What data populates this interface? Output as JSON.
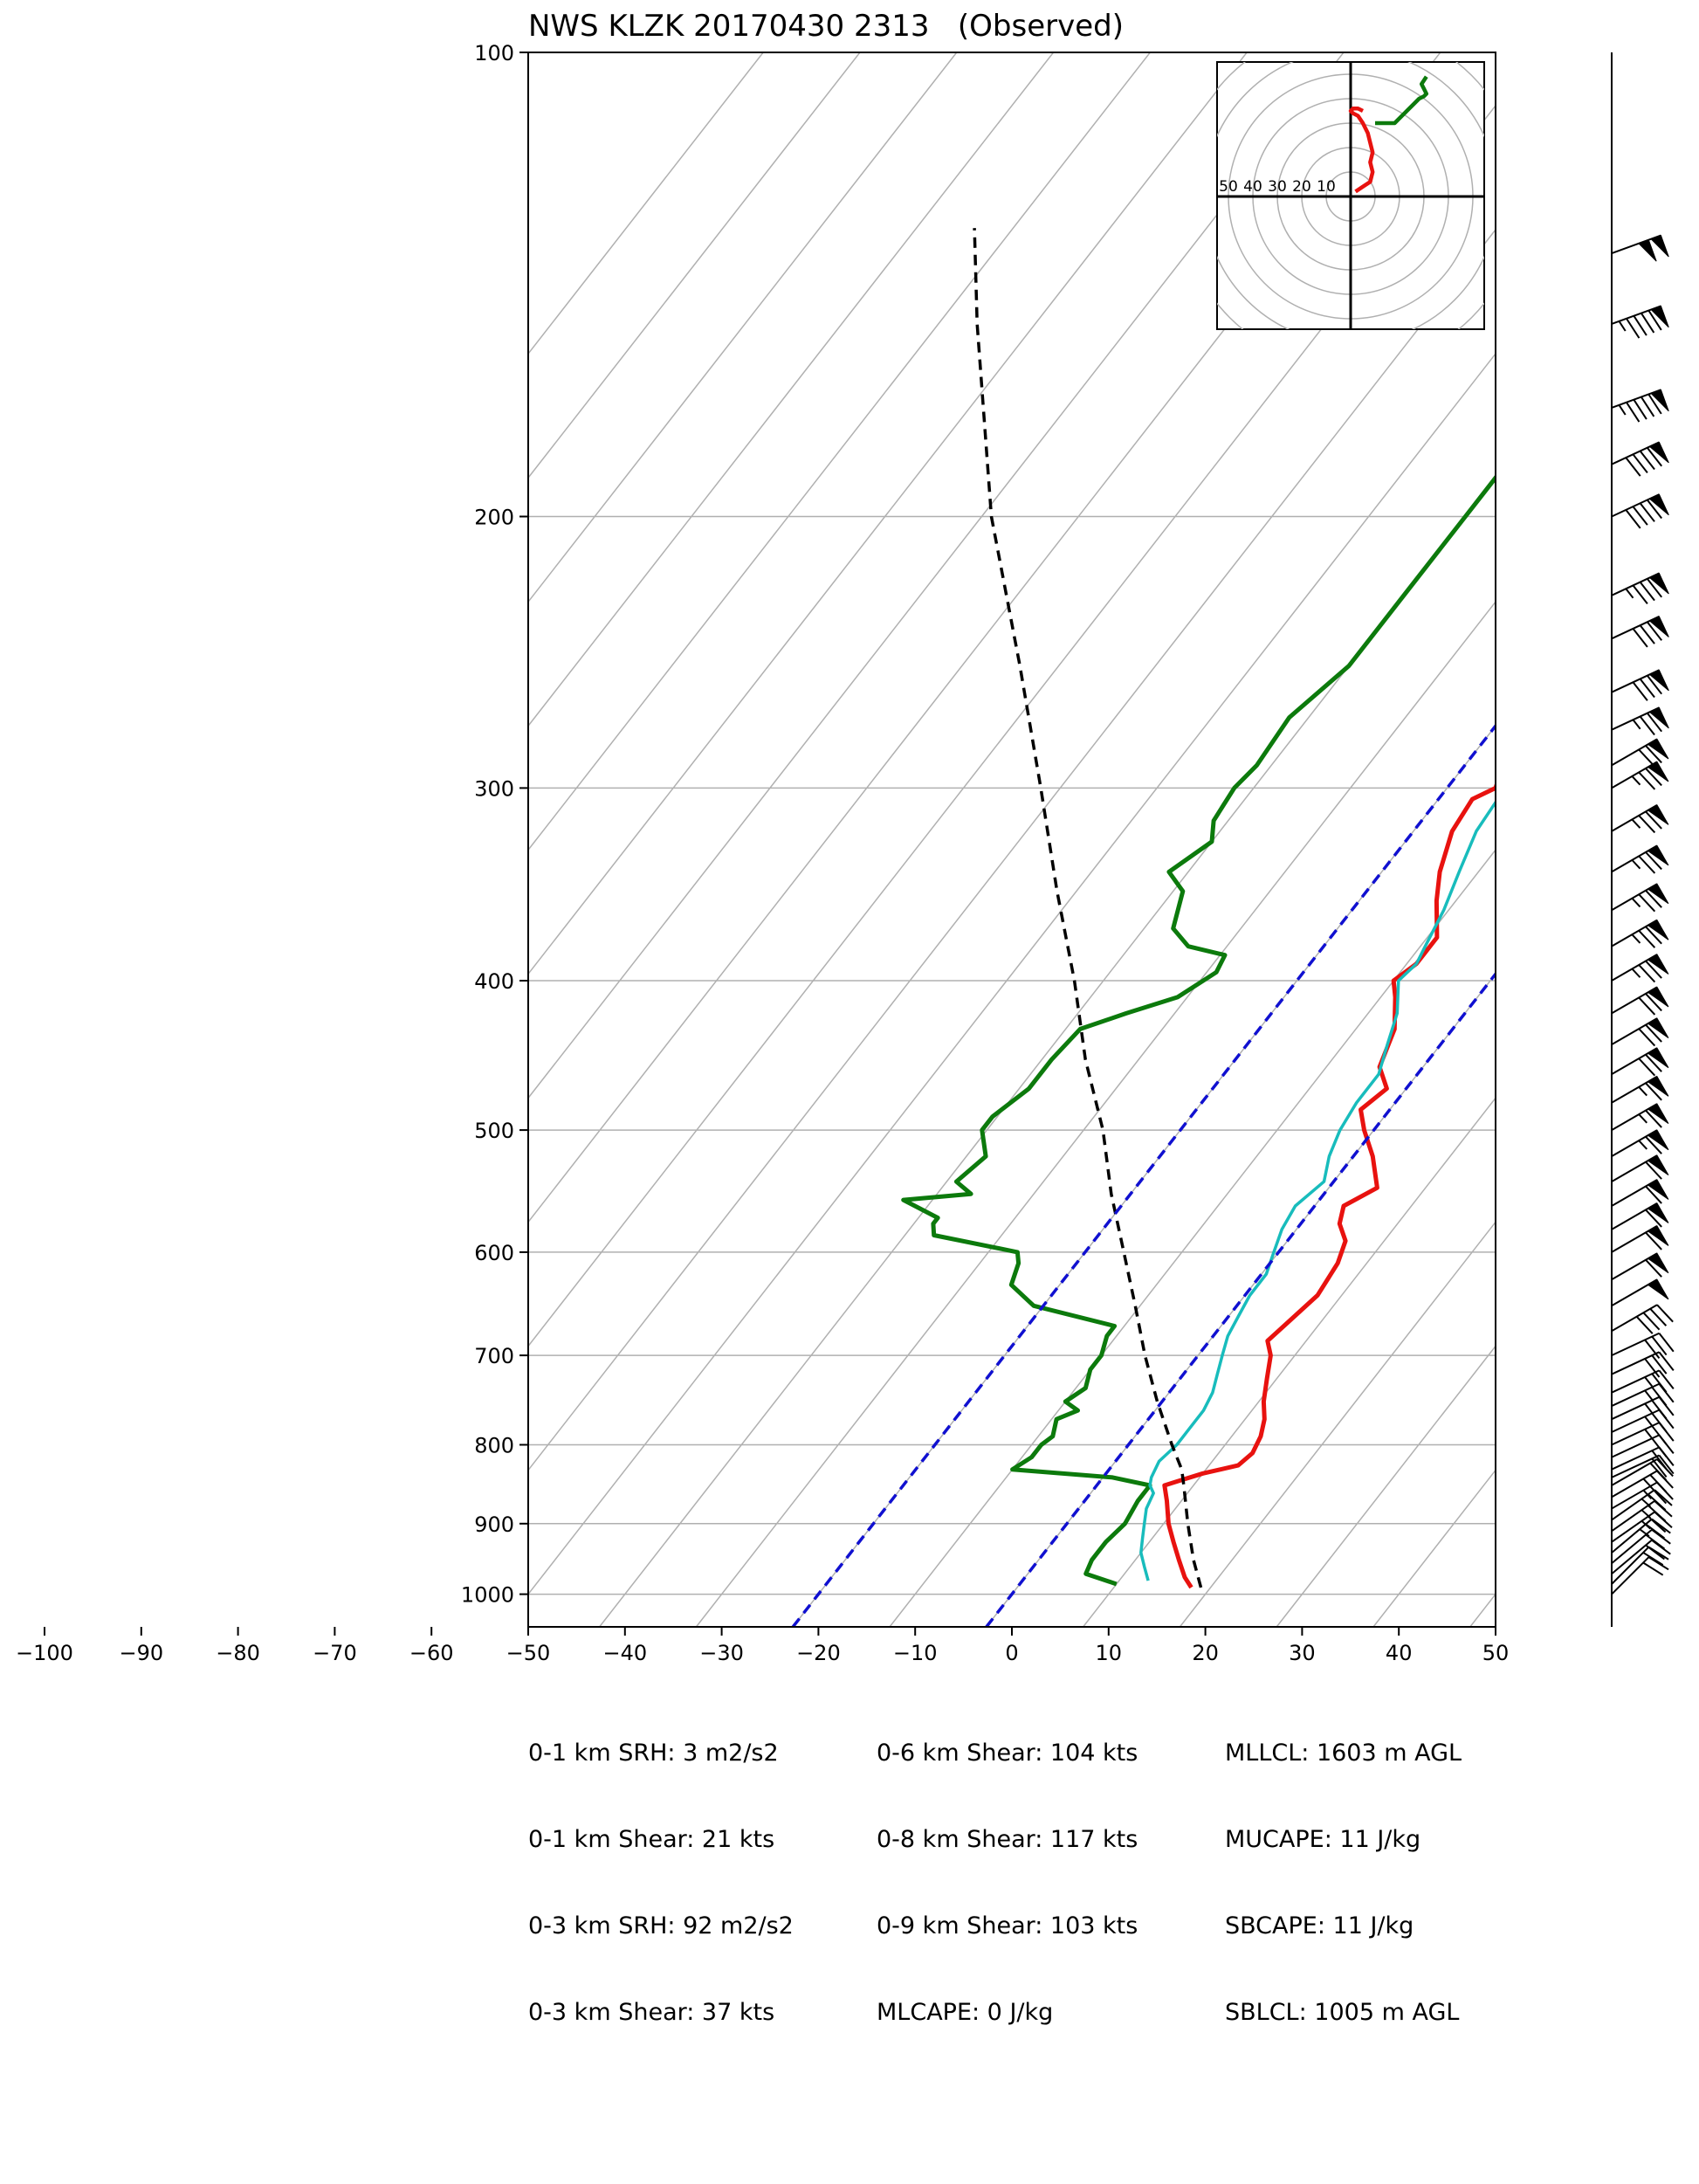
{
  "chart_data": {
    "type": "line",
    "title": "NWS KLZK 20170430 2313   (Observed)",
    "xlabel": "",
    "ylabel": "",
    "x_ticks": [
      "−100",
      "−90",
      "−80",
      "−70",
      "−60",
      "−50",
      "−40",
      "−30",
      "−20",
      "−10",
      "0",
      "10",
      "20",
      "30",
      "40",
      "50"
    ],
    "y_ticks": [
      "100",
      "200",
      "300",
      "400",
      "500",
      "600",
      "700",
      "800",
      "900",
      "1000"
    ],
    "xlim": [
      -50,
      50
    ],
    "ylim": [
      1050,
      100
    ],
    "y_scale": "log",
    "skew": "skew-T log-p",
    "colors": {
      "temperature": "#e8120f",
      "dewpoint": "#0c7a0c",
      "wetbulb": "#18bcbc",
      "parcel": "#000000",
      "dry_adiabat": "#1010d0",
      "grid": "#b0b0b0"
    },
    "series": [
      {
        "key": "temperature",
        "p": [
          990,
          975,
          950,
          925,
          900,
          870,
          850,
          845,
          835,
          825,
          810,
          790,
          770,
          750,
          725,
          700,
          685,
          670,
          640,
          610,
          590,
          575,
          560,
          545,
          520,
          500,
          485,
          470,
          455,
          430,
          410,
          400,
          390,
          375,
          355,
          340,
          320,
          305,
          300,
          290,
          270,
          255,
          240,
          220,
          200,
          190,
          175,
          160,
          150,
          140,
          125,
          115,
          108,
          100
        ],
        "T": [
          18,
          16.5,
          14.5,
          12.5,
          10.5,
          8.5,
          7,
          8,
          10,
          13,
          13.5,
          13,
          12,
          10.5,
          9,
          7.5,
          6,
          6.5,
          7.5,
          7,
          6,
          4,
          3,
          5,
          2,
          -1,
          -3,
          -2,
          -4.5,
          -6,
          -8.5,
          -10,
          -9,
          -9,
          -12,
          -14,
          -16,
          -16.5,
          -15,
          -16,
          -17,
          -17.5,
          -18,
          -19,
          -20,
          -20.5,
          -21,
          -23,
          -24,
          -25,
          -24,
          -22,
          -24,
          -25
        ]
      },
      {
        "key": "dewpoint",
        "p": [
          985,
          970,
          950,
          925,
          900,
          870,
          850,
          840,
          830,
          815,
          800,
          790,
          770,
          760,
          750,
          735,
          715,
          700,
          680,
          670,
          650,
          630,
          610,
          600,
          585,
          575,
          570,
          555,
          550,
          540,
          520,
          500,
          490,
          470,
          450,
          430,
          420,
          410,
          395,
          385,
          380,
          370,
          350,
          340,
          325,
          315,
          300,
          290,
          270,
          250,
          225,
          200,
          180,
          160,
          145,
          130,
          125,
          115,
          110,
          100
        ],
        "T": [
          10,
          6,
          5.5,
          5.5,
          6,
          5.5,
          5.5,
          1,
          -10,
          -9,
          -9,
          -8.5,
          -9.5,
          -8,
          -10,
          -9,
          -10,
          -10,
          -11,
          -11,
          -21,
          -25,
          -26,
          -27,
          -37,
          -38,
          -38,
          -43,
          -36.5,
          -39,
          -38,
          -40.5,
          -40.5,
          -39,
          -39,
          -38.5,
          -35,
          -31,
          -29,
          -29.5,
          -34,
          -37,
          -39,
          -42,
          -40,
          -41.5,
          -42,
          -41.5,
          -42,
          -40,
          -40,
          -40,
          -40,
          -40.5,
          -40.5,
          -40.5,
          -38.5,
          -35,
          -33.5,
          -35
        ]
      },
      {
        "key": "wetbulb",
        "p": [
          980,
          960,
          940,
          920,
          900,
          880,
          860,
          850,
          840,
          820,
          800,
          780,
          760,
          740,
          720,
          700,
          680,
          660,
          640,
          620,
          600,
          580,
          560,
          540,
          520,
          500,
          480,
          460,
          440,
          420,
          400,
          390,
          380,
          360,
          340,
          320,
          300,
          290,
          280,
          270,
          260,
          250,
          240,
          220,
          200,
          185,
          170,
          160,
          150,
          140,
          130,
          125,
          120,
          115,
          110,
          105,
          100
        ],
        "T": [
          13,
          11.5,
          10,
          9,
          8,
          7,
          6.5,
          5.5,
          5,
          4.5,
          5,
          5,
          5,
          4.5,
          3.5,
          2.5,
          1.5,
          1,
          0.5,
          0.5,
          -0.5,
          -1.5,
          -2,
          -1,
          -2.5,
          -3.5,
          -4,
          -4,
          -5.5,
          -7,
          -9.5,
          -9,
          -9.5,
          -10.5,
          -12,
          -13.5,
          -14,
          -14,
          -15,
          -16.5,
          -17.5,
          -18,
          -18,
          -18.5,
          -19.5,
          -20,
          -21,
          -22,
          -23,
          -24,
          -25,
          -25,
          -24.5,
          -22,
          -24.5,
          -25.5,
          -26
        ]
      },
      {
        "key": "parcel",
        "p": [
          990,
          950,
          900,
          850,
          830,
          800,
          750,
          700,
          650,
          600,
          550,
          500,
          450,
          400,
          350,
          300,
          250,
          200,
          150,
          130
        ],
        "T": [
          19,
          16,
          12.5,
          9,
          7.5,
          4.5,
          -0.5,
          -5.5,
          -10.5,
          -16,
          -22,
          -28,
          -35.5,
          -43,
          -52,
          -62,
          -74,
          -89,
          -106,
          -114
        ]
      },
      {
        "key": "dry_adiabat_1",
        "p": [
          1050,
          100
        ],
        "T": [
          -20,
          -20
        ]
      },
      {
        "key": "dry_adiabat_2",
        "p": [
          1050,
          100
        ],
        "T": [
          0,
          0
        ]
      }
    ],
    "hodograph": {
      "ring_labels": [
        "50",
        "40",
        "30",
        "20",
        "10"
      ],
      "rings": [
        10,
        20,
        30,
        40,
        50
      ],
      "traces": [
        {
          "key": "temperature",
          "u": [
            2,
            5,
            8,
            9,
            8,
            9,
            8,
            7,
            5,
            3,
            1,
            0,
            1,
            3,
            5
          ],
          "v": [
            2,
            4,
            6,
            10,
            14,
            18,
            22,
            26,
            30,
            33,
            34,
            35,
            36,
            36,
            35
          ]
        },
        {
          "key": "dewpoint",
          "u": [
            10,
            14,
            18,
            20,
            23,
            26,
            28,
            30,
            31,
            30,
            29,
            31
          ],
          "v": [
            30,
            30,
            30,
            32,
            35,
            38,
            40,
            41,
            42,
            44,
            46,
            49
          ]
        }
      ]
    },
    "wind_barbs": {
      "p": [
        1000,
        985,
        970,
        955,
        940,
        925,
        910,
        895,
        880,
        865,
        850,
        840,
        830,
        815,
        800,
        785,
        770,
        755,
        740,
        720,
        700,
        675,
        650,
        625,
        600,
        580,
        560,
        540,
        520,
        500,
        480,
        460,
        440,
        420,
        400,
        380,
        360,
        340,
        320,
        300,
        290,
        275,
        260,
        240,
        225,
        200,
        185,
        170,
        150,
        135
      ],
      "spd": [
        20,
        20,
        20,
        20,
        25,
        25,
        25,
        25,
        25,
        25,
        20,
        20,
        20,
        20,
        25,
        25,
        25,
        25,
        25,
        30,
        30,
        40,
        50,
        60,
        60,
        60,
        60,
        60,
        65,
        65,
        65,
        70,
        70,
        70,
        75,
        75,
        75,
        75,
        75,
        75,
        70,
        75,
        80,
        80,
        85,
        90,
        90,
        95,
        95,
        100
      ],
      "dir": [
        225,
        225,
        230,
        230,
        230,
        235,
        235,
        235,
        240,
        240,
        240,
        245,
        245,
        245,
        245,
        245,
        245,
        245,
        245,
        245,
        245,
        240,
        240,
        240,
        240,
        240,
        240,
        240,
        240,
        240,
        240,
        240,
        240,
        240,
        240,
        240,
        240,
        240,
        240,
        240,
        240,
        245,
        245,
        245,
        245,
        245,
        245,
        250,
        250,
        250
      ]
    }
  },
  "stats": {
    "col1": [
      "0-1 km SRH: 3 m2/s2",
      "0-1 km Shear: 21 kts",
      "0-3 km SRH: 92 m2/s2",
      "0-3 km Shear: 37 kts"
    ],
    "col2": [
      "0-6 km Shear: 104 kts",
      "0-8 km Shear: 117 kts",
      "0-9 km Shear: 103 kts",
      "MLCAPE: 0 J/kg"
    ],
    "col3": [
      "MLLCL: 1603 m AGL",
      "MUCAPE: 11 J/kg",
      "SBCAPE: 11 J/kg",
      "SBLCL: 1005 m AGL"
    ]
  }
}
